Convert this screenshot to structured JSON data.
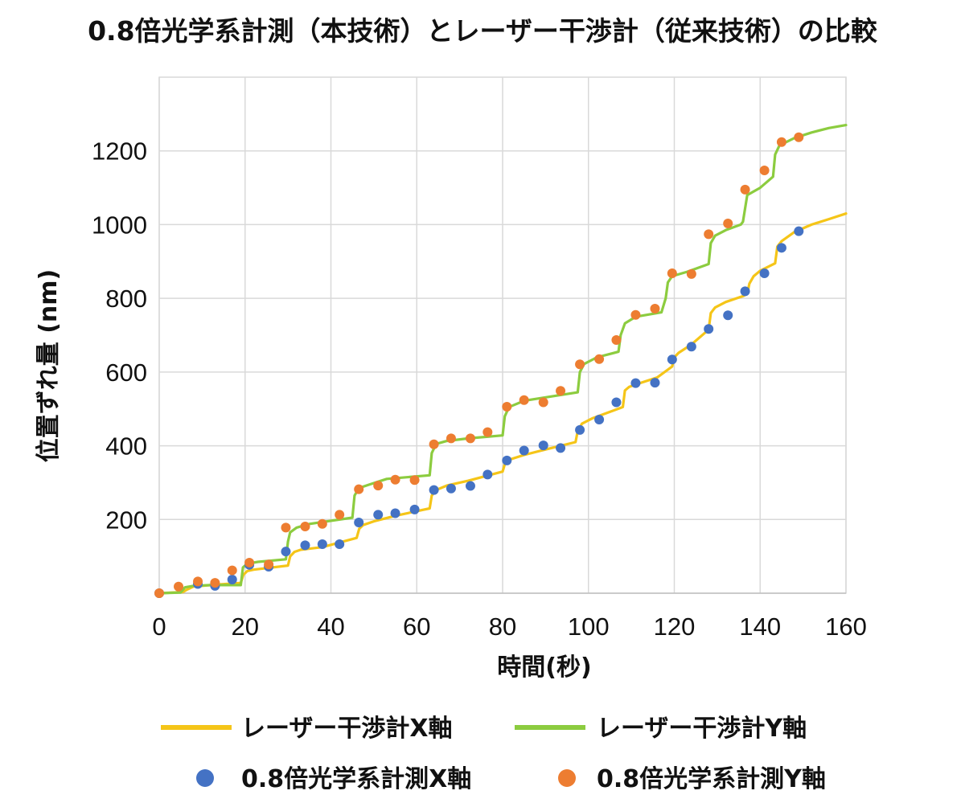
{
  "chart_data": {
    "type": "line",
    "title": "0.8倍光学系計測（本技術）とレーザー干渉計（従来技術）の比較",
    "xlabel": "時間(秒)",
    "ylabel": "位置ずれ量 (nm)",
    "xlim": [
      0,
      160
    ],
    "ylim": [
      0,
      1400
    ],
    "xticks": [
      0,
      20,
      40,
      60,
      80,
      100,
      120,
      140,
      160
    ],
    "yticks": [
      200,
      400,
      600,
      800,
      1000,
      1200
    ],
    "grid": true,
    "legend_position": "bottom",
    "series": [
      {
        "name": "レーザー干渉計X軸",
        "kind": "line",
        "color": "#f5c518",
        "x": [
          0,
          5.5,
          6.5,
          8,
          12,
          19,
          19.6,
          20.5,
          22,
          25,
          30,
          30.5,
          31.5,
          33,
          38,
          46,
          46.6,
          47.5,
          50,
          55,
          63,
          63.5,
          64.5,
          67,
          72,
          80,
          80.5,
          81.5,
          85,
          90,
          97,
          97.5,
          98.5,
          101,
          105,
          108,
          108.5,
          109.5,
          112,
          116,
          119.5,
          120,
          121,
          124,
          128,
          128.5,
          129.5,
          132,
          136,
          137,
          137.5,
          138.5,
          140,
          143.5,
          144,
          145,
          148,
          152,
          156,
          160
        ],
        "y": [
          0,
          3,
          10,
          18,
          22,
          28,
          50,
          60,
          64,
          68,
          75,
          100,
          112,
          118,
          125,
          150,
          175,
          185,
          195,
          210,
          230,
          265,
          280,
          292,
          305,
          330,
          350,
          362,
          375,
          390,
          410,
          440,
          460,
          475,
          492,
          505,
          550,
          560,
          570,
          585,
          615,
          640,
          652,
          675,
          715,
          760,
          775,
          790,
          806,
          812,
          840,
          860,
          875,
          895,
          940,
          955,
          980,
          1000,
          1015,
          1030
        ]
      },
      {
        "name": "レーザー干渉計Y軸",
        "kind": "line",
        "color": "#8ccc3f",
        "x": [
          0,
          5,
          6,
          8,
          12,
          19,
          19.5,
          20.5,
          23,
          29.5,
          30,
          30.5,
          32,
          35,
          45,
          45.5,
          46.5,
          49,
          53,
          63,
          63.5,
          64.5,
          67,
          72,
          80,
          80.5,
          81.5,
          85,
          92,
          97.5,
          98,
          99,
          102,
          107,
          107.5,
          108.5,
          111,
          117,
          118,
          118.5,
          119.5,
          123,
          128,
          128.5,
          129.5,
          132,
          135.5,
          136,
          137,
          140,
          143,
          143.5,
          144.5,
          148,
          152,
          156,
          160
        ],
        "y": [
          0,
          2,
          16,
          20,
          22,
          22,
          70,
          80,
          85,
          92,
          140,
          165,
          178,
          188,
          205,
          265,
          285,
          295,
          310,
          320,
          380,
          405,
          413,
          420,
          428,
          480,
          505,
          522,
          535,
          545,
          600,
          622,
          640,
          655,
          700,
          732,
          750,
          762,
          800,
          843,
          860,
          872,
          893,
          950,
          970,
          985,
          1000,
          1008,
          1080,
          1100,
          1130,
          1190,
          1215,
          1235,
          1250,
          1262,
          1270
        ]
      },
      {
        "name": "0.8倍光学系計測X軸",
        "kind": "scatter",
        "color": "#4472c4",
        "x": [
          0,
          9,
          13,
          17,
          21,
          25.5,
          29.5,
          34,
          38,
          42,
          46.5,
          51,
          55,
          59.5,
          64,
          68,
          72.5,
          76.5,
          81,
          85,
          89.5,
          93.5,
          98,
          102.5,
          106.5,
          111,
          115.5,
          119.5,
          124,
          128,
          132.5,
          136.5,
          141,
          145,
          149
        ],
        "y": [
          0,
          25,
          20,
          37,
          77,
          72,
          113,
          130,
          133,
          133,
          192,
          213,
          217,
          227,
          280,
          284,
          291,
          322,
          360,
          387,
          401,
          394,
          443,
          471,
          518,
          570,
          571,
          634,
          669,
          717,
          754,
          819,
          868,
          937,
          982
        ]
      },
      {
        "name": "0.8倍光学系計測Y軸",
        "kind": "scatter",
        "color": "#ed7d31",
        "x": [
          0,
          4.5,
          9,
          13,
          17,
          21,
          25.5,
          29.5,
          34,
          38,
          42,
          46.5,
          51,
          55,
          59.5,
          64,
          68,
          72.5,
          76.5,
          81,
          85,
          89.5,
          93.5,
          98,
          102.5,
          106.5,
          111,
          115.5,
          119.5,
          124,
          128,
          132.5,
          136.5,
          141,
          145,
          149
        ],
        "y": [
          0,
          18,
          32,
          28,
          62,
          83,
          78,
          178,
          181,
          188,
          213,
          282,
          292,
          308,
          307,
          404,
          420,
          420,
          437,
          506,
          524,
          518,
          549,
          621,
          635,
          687,
          755,
          772,
          868,
          866,
          974,
          1003,
          1095,
          1147,
          1224,
          1237
        ]
      }
    ]
  }
}
